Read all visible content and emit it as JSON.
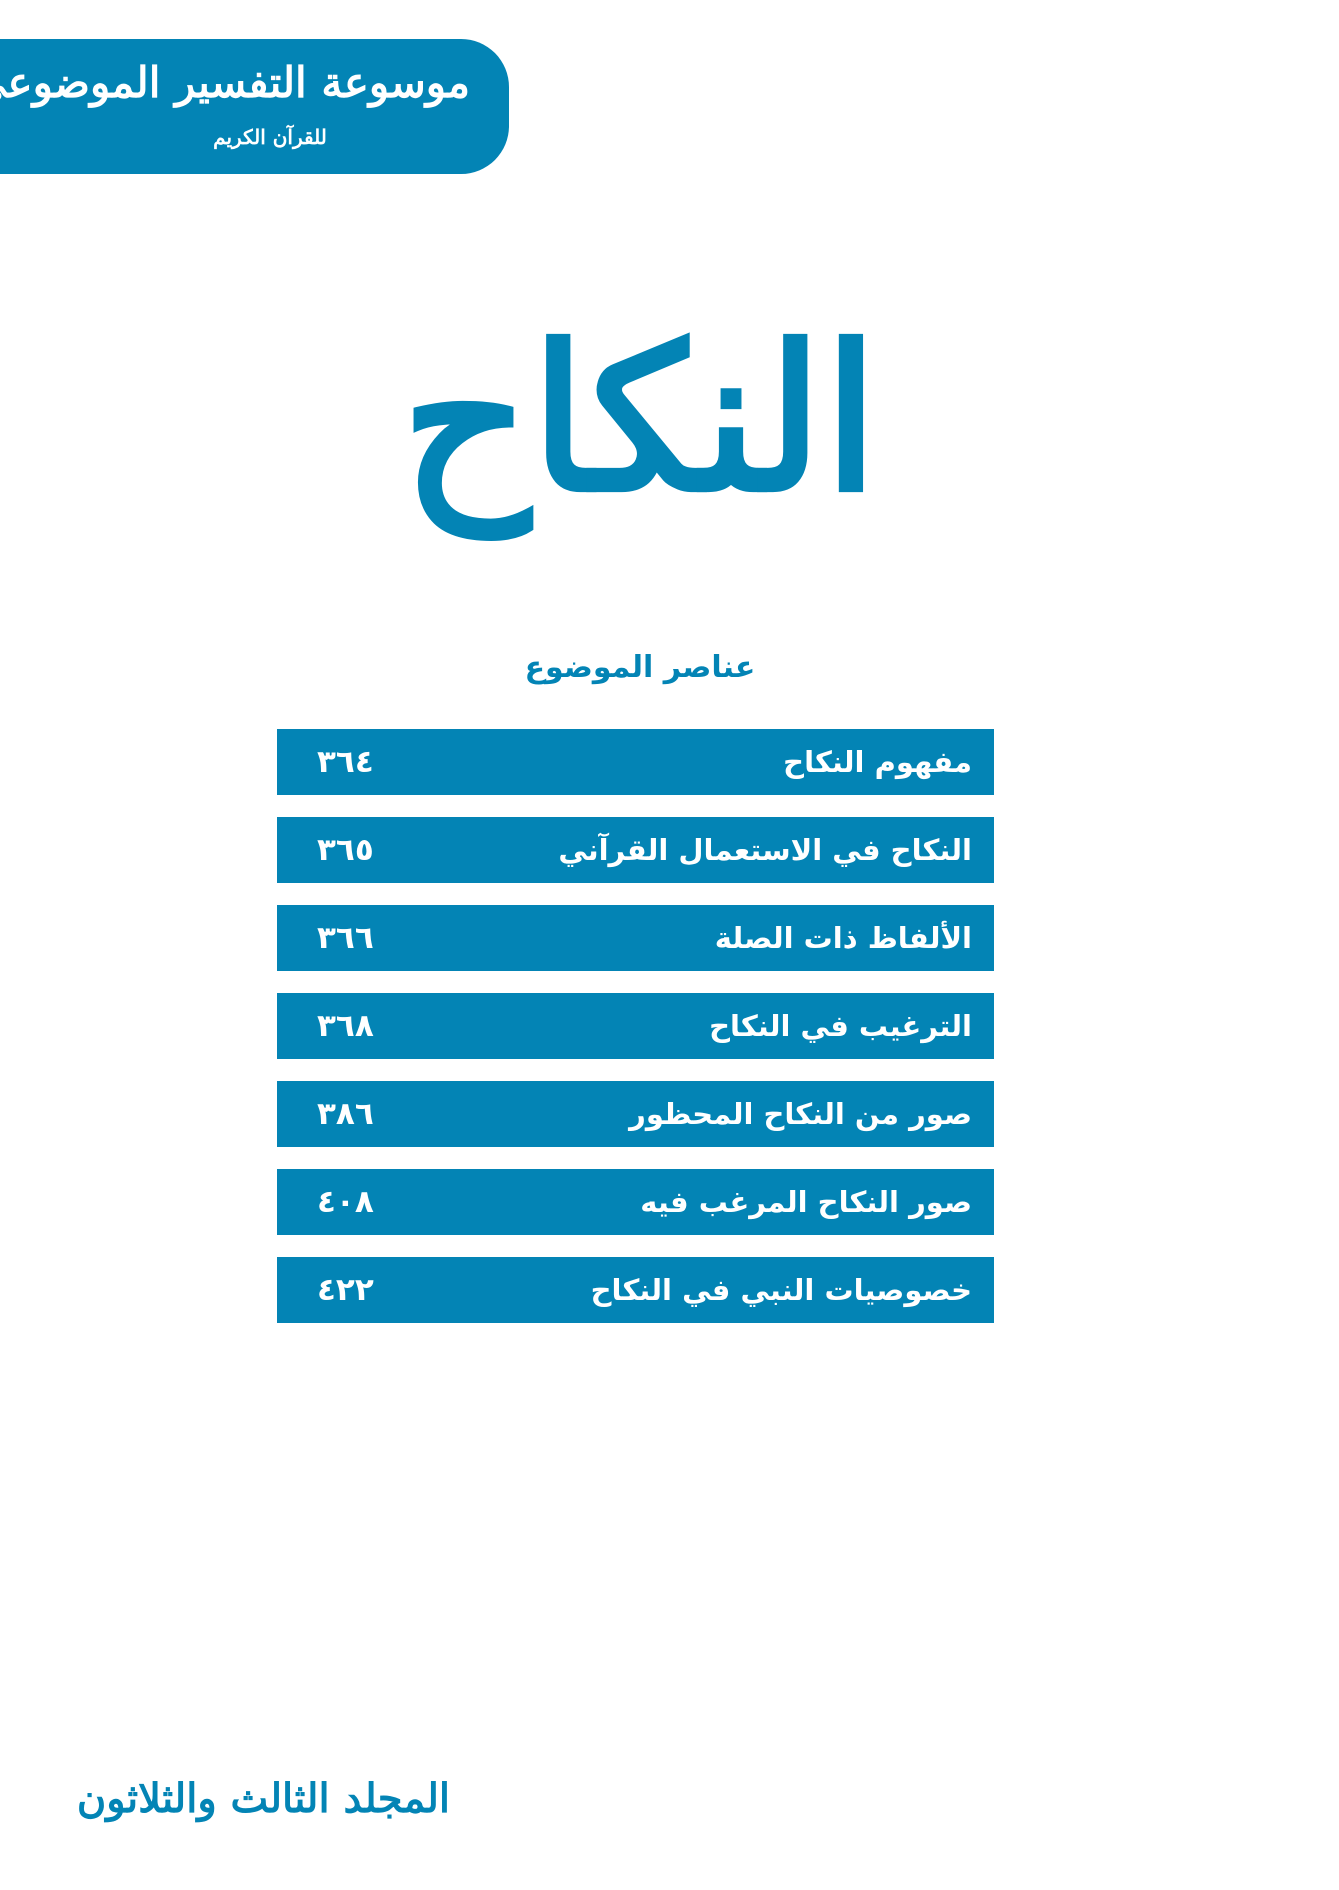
{
  "header": {
    "series_title": "موسوعة التفسير الموضوعي",
    "series_subtitle": "للقرآن الكريم"
  },
  "title": "النكاح",
  "toc": {
    "heading": "عناصر الموضوع",
    "items": [
      {
        "label": "مفهوم النكاح",
        "page": "٣٦٤"
      },
      {
        "label": "النكاح في الاستعمال القرآني",
        "page": "٣٦٥"
      },
      {
        "label": "الألفاظ ذات الصلة",
        "page": "٣٦٦"
      },
      {
        "label": "الترغيب في النكاح",
        "page": "٣٦٨"
      },
      {
        "label": "صور من النكاح المحظور",
        "page": "٣٨٦"
      },
      {
        "label": "صور النكاح المرغب فيه",
        "page": "٤٠٨"
      },
      {
        "label": "خصوصيات النبي في النكاح",
        "page": "٤٢٢"
      }
    ]
  },
  "footer": {
    "volume": "المجلد الثالث والثلاثون"
  },
  "colors": {
    "accent": "#0384b5",
    "background": "#ffffff"
  }
}
